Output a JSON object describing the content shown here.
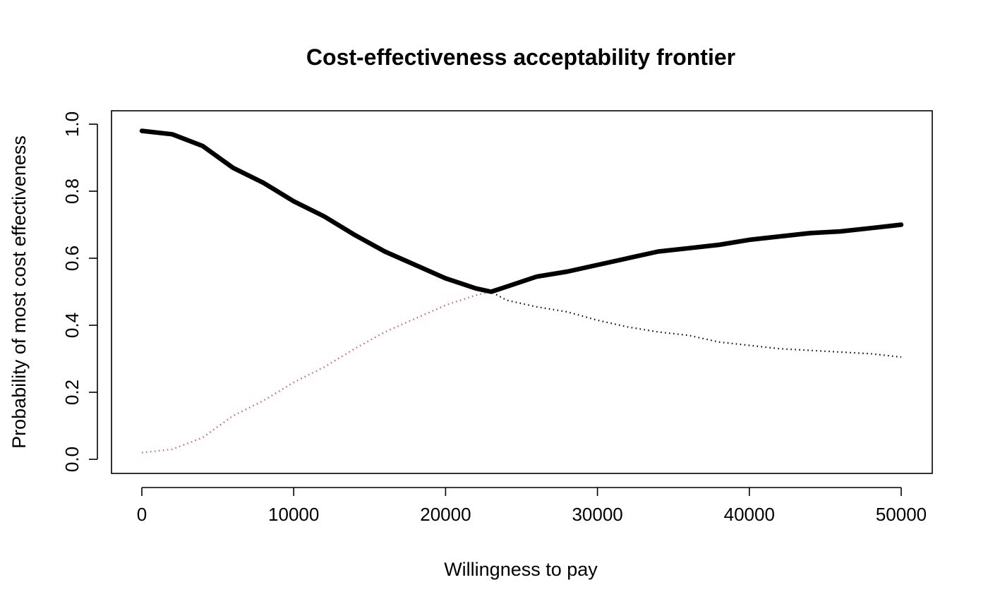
{
  "chart_data": {
    "type": "line",
    "title": "Cost-effectiveness acceptability frontier",
    "xlabel": "Willingness to pay",
    "ylabel": "Probability of most cost effectiveness",
    "xlim": [
      0,
      50000
    ],
    "ylim": [
      0,
      1
    ],
    "x_ticks": [
      0,
      10000,
      20000,
      30000,
      40000,
      50000
    ],
    "y_ticks": [
      0.0,
      0.2,
      0.4,
      0.6,
      0.8,
      1.0
    ],
    "y_tick_labels": [
      "0.0",
      "0.2",
      "0.4",
      "0.6",
      "0.8",
      "1.0"
    ],
    "grid": false,
    "series": [
      {
        "style": "dotted",
        "color": "#000000",
        "x": [
          0,
          2000,
          4000,
          6000,
          8000,
          10000,
          12000,
          14000,
          16000,
          18000,
          20000,
          22000,
          23000,
          24000,
          26000,
          28000,
          30000,
          32000,
          34000,
          36000,
          38000,
          40000,
          42000,
          44000,
          46000,
          48000,
          50000
        ],
        "values": [
          0.98,
          0.97,
          0.935,
          0.87,
          0.825,
          0.77,
          0.725,
          0.67,
          0.62,
          0.58,
          0.54,
          0.51,
          0.5,
          0.475,
          0.455,
          0.44,
          0.415,
          0.395,
          0.38,
          0.37,
          0.35,
          0.34,
          0.33,
          0.325,
          0.32,
          0.315,
          0.305
        ]
      },
      {
        "style": "dotted",
        "color": "#DF536B",
        "x": [
          0,
          2000,
          4000,
          6000,
          8000,
          10000,
          12000,
          14000,
          16000,
          18000,
          20000,
          22000,
          23000
        ],
        "values": [
          0.02,
          0.03,
          0.065,
          0.13,
          0.175,
          0.23,
          0.275,
          0.33,
          0.38,
          0.42,
          0.46,
          0.49,
          0.5
        ]
      },
      {
        "style": "frontier",
        "color": "#000000",
        "x": [
          0,
          2000,
          4000,
          6000,
          8000,
          10000,
          12000,
          14000,
          16000,
          18000,
          20000,
          22000,
          23000,
          24000,
          26000,
          28000,
          30000,
          32000,
          34000,
          36000,
          38000,
          40000,
          42000,
          44000,
          46000,
          48000,
          50000
        ],
        "values": [
          0.98,
          0.97,
          0.935,
          0.87,
          0.825,
          0.77,
          0.725,
          0.67,
          0.62,
          0.58,
          0.54,
          0.51,
          0.5,
          0.515,
          0.545,
          0.56,
          0.58,
          0.6,
          0.62,
          0.63,
          0.64,
          0.655,
          0.665,
          0.675,
          0.68,
          0.69,
          0.7
        ]
      }
    ]
  }
}
